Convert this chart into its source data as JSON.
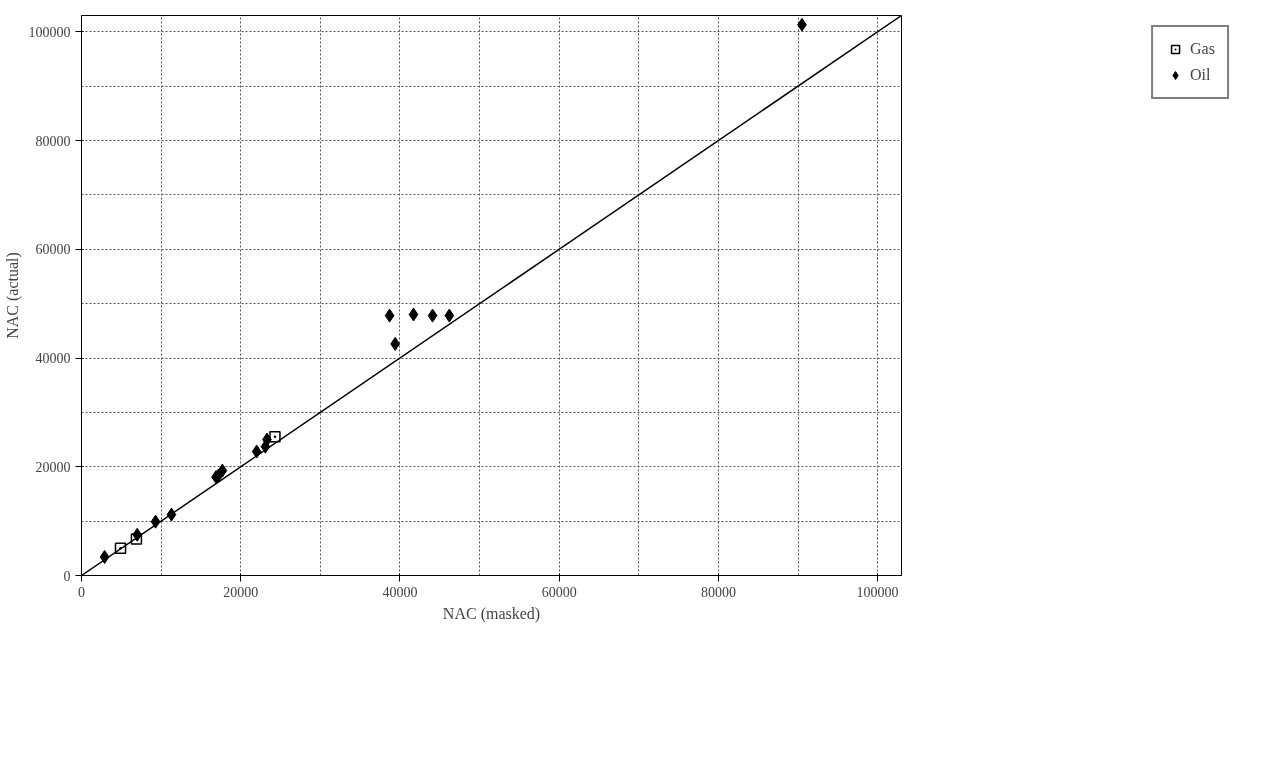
{
  "chart_data": {
    "type": "scatter",
    "xlabel": "NAC (masked)",
    "ylabel": "NAC (actual)",
    "xlim": [
      0,
      103000
    ],
    "ylim": [
      0,
      103000
    ],
    "xticks": [
      0,
      20000,
      40000,
      60000,
      80000,
      100000
    ],
    "yticks": [
      0,
      20000,
      40000,
      60000,
      80000,
      100000
    ],
    "grid": true,
    "legend": "top right",
    "series": [
      {
        "name": "Gas",
        "color": "#000000",
        "marker": "square",
        "x": [
          4900,
          6900,
          24300
        ],
        "values": [
          5000,
          6700,
          25500
        ]
      },
      {
        "name": "Oil",
        "color": "#000000",
        "marker": "diamond",
        "x": [
          2900,
          7000,
          9300,
          11300,
          16900,
          17200,
          17700,
          22000,
          23100,
          23300,
          38700,
          41700,
          44100,
          46200,
          39400,
          90500
        ],
        "values": [
          3400,
          7500,
          9900,
          11200,
          18100,
          18400,
          19300,
          22800,
          23700,
          25000,
          47800,
          48000,
          47800,
          47800,
          42600,
          101300
        ]
      },
      {
        "type": "line",
        "color": "#000000",
        "marker": "none",
        "x": [
          0,
          103000
        ],
        "values": [
          0,
          103000
        ]
      }
    ]
  }
}
